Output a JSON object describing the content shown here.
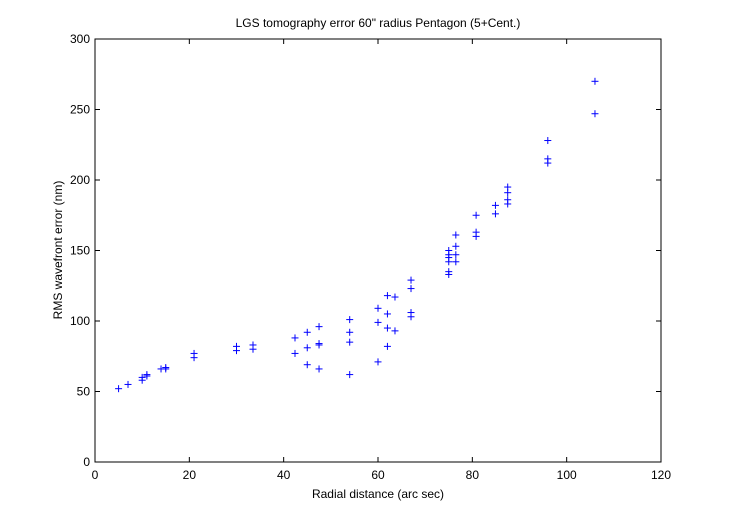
{
  "chart_data": {
    "type": "scatter",
    "title": "LGS tomography error 60\" radius Pentagon (5+Cent.)",
    "xlabel": "Radial distance (arc sec)",
    "ylabel": "RMS wavefront error (nm)",
    "xlim": [
      0,
      120
    ],
    "ylim": [
      0,
      300
    ],
    "xticks": [
      "0",
      "20",
      "40",
      "60",
      "80",
      "100",
      "120"
    ],
    "yticks": [
      "0",
      "50",
      "100",
      "150",
      "200",
      "250",
      "300"
    ],
    "grid": false,
    "marker": "+",
    "colors": {
      "marker": "#0000ff",
      "axes": "#000000"
    },
    "points": [
      [
        5,
        52
      ],
      [
        7,
        55
      ],
      [
        10,
        58
      ],
      [
        10,
        60
      ],
      [
        11,
        61
      ],
      [
        11,
        62
      ],
      [
        14,
        66
      ],
      [
        15,
        67
      ],
      [
        15,
        66
      ],
      [
        21,
        77
      ],
      [
        21,
        74
      ],
      [
        30,
        79
      ],
      [
        30,
        82
      ],
      [
        33.5,
        80
      ],
      [
        33.5,
        83
      ],
      [
        42.4,
        77
      ],
      [
        42.4,
        88
      ],
      [
        45,
        69
      ],
      [
        45,
        81
      ],
      [
        45,
        92
      ],
      [
        47.5,
        66
      ],
      [
        47.5,
        83
      ],
      [
        47.5,
        84
      ],
      [
        47.5,
        96
      ],
      [
        54,
        62
      ],
      [
        54,
        85
      ],
      [
        54,
        92
      ],
      [
        54,
        101
      ],
      [
        60,
        71
      ],
      [
        60,
        99
      ],
      [
        60,
        109
      ],
      [
        62,
        82
      ],
      [
        62,
        95
      ],
      [
        62,
        105
      ],
      [
        62,
        118
      ],
      [
        63.6,
        93
      ],
      [
        63.6,
        117
      ],
      [
        67,
        103
      ],
      [
        67,
        106
      ],
      [
        67,
        123
      ],
      [
        67,
        129
      ],
      [
        75,
        133
      ],
      [
        75,
        135
      ],
      [
        75,
        142
      ],
      [
        75,
        145
      ],
      [
        75,
        147
      ],
      [
        75,
        150
      ],
      [
        76.5,
        142
      ],
      [
        76.5,
        147
      ],
      [
        76.5,
        153
      ],
      [
        76.5,
        161
      ],
      [
        80.8,
        160
      ],
      [
        80.8,
        163
      ],
      [
        80.8,
        175
      ],
      [
        84.9,
        176
      ],
      [
        84.9,
        182
      ],
      [
        87.5,
        183
      ],
      [
        87.5,
        186
      ],
      [
        87.5,
        191
      ],
      [
        87.5,
        195
      ],
      [
        96,
        212
      ],
      [
        96,
        215
      ],
      [
        96,
        228
      ],
      [
        106,
        247
      ],
      [
        106,
        270
      ]
    ]
  }
}
